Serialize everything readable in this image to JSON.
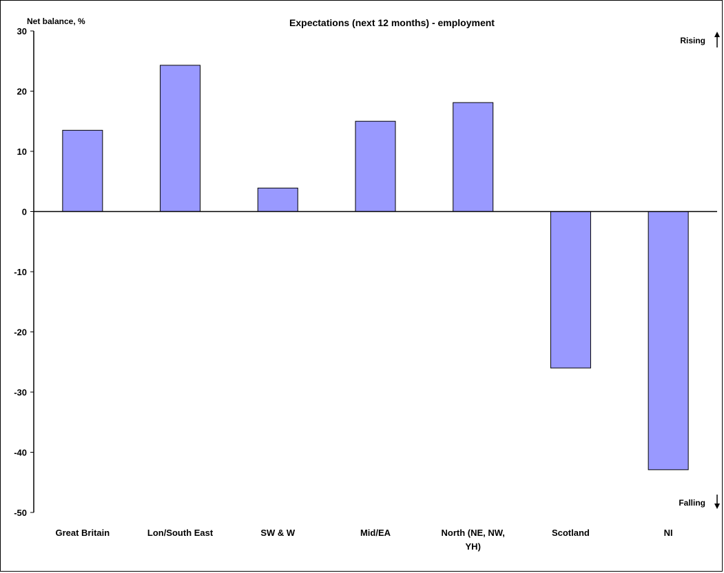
{
  "chart_data": {
    "type": "bar",
    "title": "Expectations (next 12 months) - employment",
    "ylabel": "Net balance, %",
    "xlabel": "",
    "categories": [
      [
        "Great Britain"
      ],
      [
        "Lon/South East"
      ],
      [
        "SW & W"
      ],
      [
        "Mid/EA"
      ],
      [
        "North (NE, NW,",
        "YH)"
      ],
      [
        "Scotland"
      ],
      [
        "NI"
      ]
    ],
    "values": [
      13.5,
      24.3,
      3.9,
      15.0,
      18.1,
      -26.0,
      -42.9
    ],
    "ylim": [
      -50,
      30
    ],
    "yticks": [
      30,
      20,
      10,
      0,
      -10,
      -20,
      -30,
      -40,
      -50
    ],
    "annotations": {
      "top": "Rising",
      "bottom": "Falling"
    },
    "colors": {
      "bar_fill": "#9999ff",
      "bar_stroke": "#000000"
    },
    "grid": false,
    "legend": "none"
  }
}
